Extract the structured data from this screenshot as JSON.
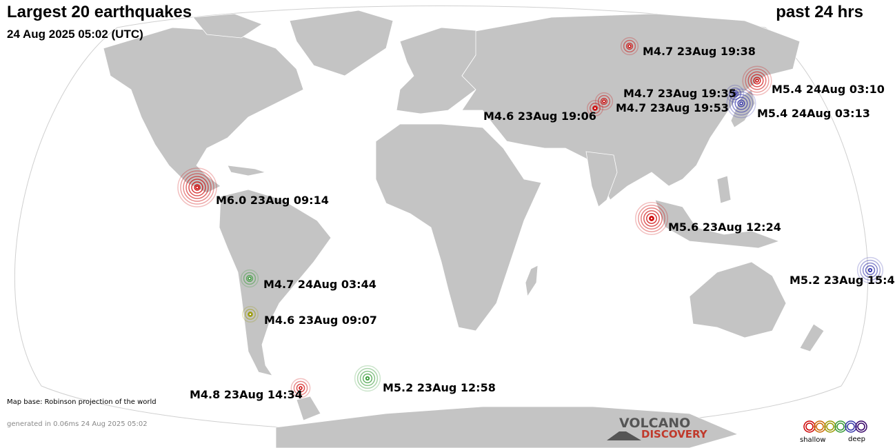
{
  "header": {
    "title": "Largest 20 earthquakes",
    "period": "past 24 hrs",
    "datetime": "24 Aug 2025 05:02 (UTC)"
  },
  "footer": {
    "map_base": "Map base: Robinson projection of the world",
    "generated": "generated in 0.06ms 24 Aug 2025 05:02"
  },
  "logo": {
    "line1": "VOLCANO",
    "line2": "DISCOVERY"
  },
  "legend": {
    "shallow": "shallow",
    "deep": "deep",
    "colors": [
      "#cc0000",
      "#cc6600",
      "#999900",
      "#339933",
      "#3333aa",
      "#330066"
    ]
  },
  "colors": {
    "land": "#c4c4c4",
    "border": "#ffffff",
    "ocean": "#ffffff",
    "shallow": "#cc0000",
    "mid": "#339933",
    "intermediate": "#999900",
    "deep": "#3333aa"
  },
  "earthquakes": [
    {
      "label": "M4.7 23Aug 19:38",
      "mag": 4.7,
      "depth_class": "shallow"
    },
    {
      "label": "M5.4 24Aug 03:10",
      "mag": 5.4,
      "depth_class": "shallow"
    },
    {
      "label": "M4.7 23Aug 19:35",
      "mag": 4.7,
      "depth_class": "deep"
    },
    {
      "label": "M4.7 23Aug 19:53",
      "mag": 4.7,
      "depth_class": "shallow"
    },
    {
      "label": "M5.4 24Aug 03:13",
      "mag": 5.4,
      "depth_class": "deep"
    },
    {
      "label": "M4.6 23Aug 19:06",
      "mag": 4.6,
      "depth_class": "shallow"
    },
    {
      "label": "M6.0 23Aug 09:14",
      "mag": 6.0,
      "depth_class": "shallow"
    },
    {
      "label": "M5.6 23Aug 12:24",
      "mag": 5.6,
      "depth_class": "shallow"
    },
    {
      "label": "M5.2 23Aug 15:4",
      "mag": 5.2,
      "depth_class": "deep"
    },
    {
      "label": "M4.7 24Aug 03:44",
      "mag": 4.7,
      "depth_class": "mid"
    },
    {
      "label": "M4.6 23Aug 09:07",
      "mag": 4.6,
      "depth_class": "intermediate"
    },
    {
      "label": "M4.8 23Aug 14:34",
      "mag": 4.8,
      "depth_class": "shallow"
    },
    {
      "label": "M5.2 23Aug 12:58",
      "mag": 5.2,
      "depth_class": "mid"
    }
  ]
}
